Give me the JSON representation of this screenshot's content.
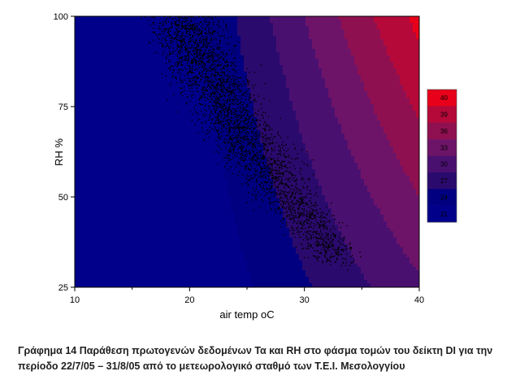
{
  "chart_data": {
    "type": "contour-scatter",
    "title": "",
    "xlabel": "air temp oC",
    "ylabel": "RH %",
    "xlim": [
      10,
      40
    ],
    "ylim": [
      25,
      100
    ],
    "x_ticks": [
      10,
      20,
      30,
      40
    ],
    "y_ticks": [
      25,
      50,
      75,
      100
    ],
    "grid": false,
    "legend_position": "right",
    "colorbar": {
      "labels": [
        "40",
        "39",
        "36",
        "33",
        "30",
        "27",
        "24",
        "21"
      ],
      "bands": [
        {
          "from": 0,
          "to": 21,
          "color": "#00008b"
        },
        {
          "from": 21,
          "to": 24,
          "color": "#000080"
        },
        {
          "from": 24,
          "to": 27,
          "color": "#2b0a6e"
        },
        {
          "from": 27,
          "to": 30,
          "color": "#4a1070"
        },
        {
          "from": 30,
          "to": 33,
          "color": "#6d1468"
        },
        {
          "from": 33,
          "to": 36,
          "color": "#8f1050"
        },
        {
          "from": 36,
          "to": 39,
          "color": "#b5093a"
        },
        {
          "from": 39,
          "to": 99,
          "color": "#e8001a"
        }
      ]
    },
    "contour_field": "DI = T - 0.55*(1 - 0.01*RH)*(T - 14.5)",
    "scatter_trend": [
      {
        "rh": 100,
        "t_center": 19.5,
        "t_spread": 3.5
      },
      {
        "rh": 90,
        "t_center": 20.5,
        "t_spread": 3.5
      },
      {
        "rh": 80,
        "t_center": 22.5,
        "t_spread": 3.5
      },
      {
        "rh": 70,
        "t_center": 24.0,
        "t_spread": 3.5
      },
      {
        "rh": 60,
        "t_center": 26.5,
        "t_spread": 3.5
      },
      {
        "rh": 50,
        "t_center": 28.5,
        "t_spread": 3.0
      },
      {
        "rh": 40,
        "t_center": 31.0,
        "t_spread": 2.5
      },
      {
        "rh": 32,
        "t_center": 33.0,
        "t_spread": 2.0
      }
    ],
    "scatter_count": 3200,
    "point_color": "#000000"
  },
  "caption": {
    "line1": "Γράφημα 14 Παράθεση πρωτογενών δεδομένων Τα και RH στο φάσμα τομών του δείκτη DI για την",
    "line2": "περίοδο 22/7/05 – 31/8/05 από το μετεωρολογικό σταθμό των Τ.Ε.Ι. Μεσολογγίου"
  }
}
